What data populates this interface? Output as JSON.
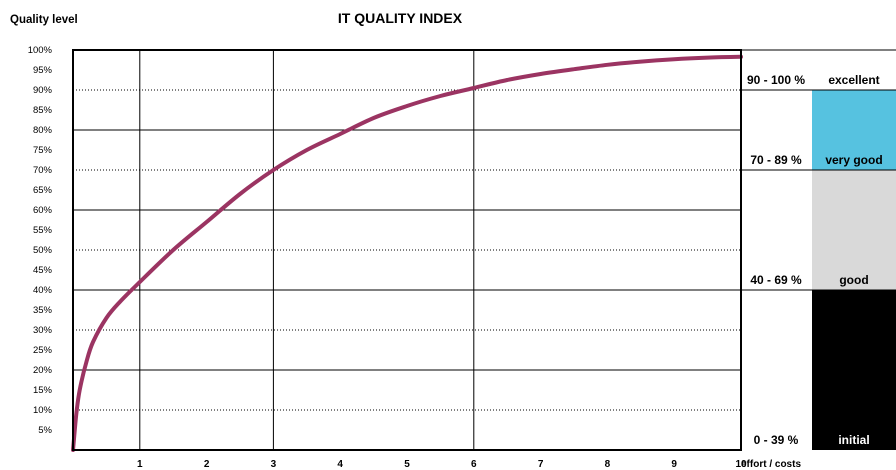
{
  "chart_data": {
    "type": "line",
    "title": "IT QUALITY INDEX",
    "ylabel": "Quality level",
    "xlabel": "effort / costs",
    "xlim": [
      0,
      10
    ],
    "ylim": [
      0,
      100
    ],
    "x_ticks": [
      "1",
      "2",
      "3",
      "4",
      "5",
      "6",
      "7",
      "8",
      "9",
      "10"
    ],
    "y_ticks": [
      "5%",
      "10%",
      "15%",
      "20%",
      "25%",
      "30%",
      "35%",
      "40%",
      "45%",
      "50%",
      "55%",
      "60%",
      "65%",
      "70%",
      "75%",
      "80%",
      "85%",
      "90%",
      "95%",
      "100%"
    ],
    "grid": true,
    "series": [
      {
        "color": "#9b3462",
        "x": [
          0,
          0.05,
          0.1,
          0.2,
          0.3,
          0.5,
          0.7,
          1,
          1.5,
          2,
          2.5,
          3,
          3.5,
          4,
          4.5,
          5,
          5.5,
          6,
          6.5,
          7,
          7.5,
          8,
          8.5,
          9,
          9.5,
          10
        ],
        "y": [
          0,
          9,
          15,
          22,
          27,
          33,
          37,
          42,
          50,
          57,
          64,
          70,
          75,
          79,
          83,
          86,
          88.5,
          90.5,
          92.5,
          94,
          95.2,
          96.3,
          97.1,
          97.7,
          98.1,
          98.3
        ]
      }
    ],
    "bands": [
      {
        "range": "90 - 100 %",
        "label": "excellent",
        "min": 90,
        "max": 100,
        "fill": "#ffffff",
        "text_color": "#000000"
      },
      {
        "range": "70 - 89 %",
        "label": "very good",
        "min": 70,
        "max": 90,
        "fill": "#56c2e0",
        "text_color": "#000000"
      },
      {
        "range": "40 - 69 %",
        "label": "good",
        "min": 40,
        "max": 70,
        "fill": "#d9d9d9",
        "text_color": "#000000"
      },
      {
        "range": "0 - 39 %",
        "label": "initial",
        "min": 0,
        "max": 40,
        "fill": "#000000",
        "text_color": "#ffffff"
      }
    ]
  }
}
